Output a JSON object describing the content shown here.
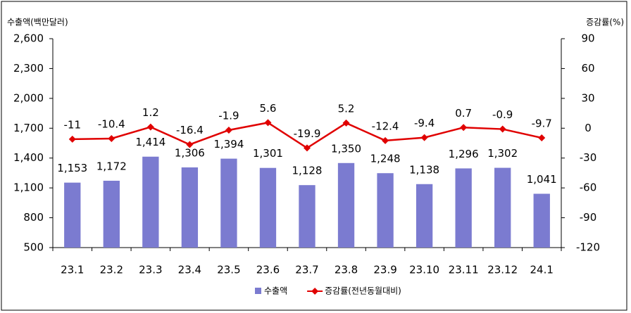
{
  "chart_data": {
    "type": "combo",
    "y_label": "수출액(백만달러)",
    "y2_label": "증감률(%)",
    "categories": [
      "23.1",
      "23.2",
      "23.3",
      "23.4",
      "23.5",
      "23.6",
      "23.7",
      "23.8",
      "23.9",
      "23.10",
      "23.11",
      "23.12",
      "24.1"
    ],
    "series": [
      {
        "name": "수출액",
        "type": "bar",
        "color": "#7b7bd0",
        "values": [
          1153,
          1172,
          1414,
          1306,
          1394,
          1301,
          1128,
          1350,
          1248,
          1138,
          1296,
          1302,
          1041
        ],
        "value_labels": [
          "1,153",
          "1,172",
          "1,414",
          "1,306",
          "1,394",
          "1,301",
          "1,128",
          "1,350",
          "1,248",
          "1,138",
          "1,296",
          "1,302",
          "1,041"
        ]
      },
      {
        "name": "증감률(전년동월대비)",
        "type": "line",
        "axis": "y2",
        "color": "#e00000",
        "values": [
          -11,
          -10.4,
          1.2,
          -16.4,
          -1.9,
          5.6,
          -19.9,
          5.2,
          -12.4,
          -9.4,
          0.7,
          -0.9,
          -9.7
        ]
      }
    ],
    "ylim": [
      500,
      2600
    ],
    "yticks": [
      500,
      800,
      {
        "value": 1100,
        "label": "1,100"
      },
      {
        "value": 1400,
        "label": "1,400"
      },
      {
        "value": 1700,
        "label": "1,700"
      },
      {
        "value": 2000,
        "label": "2,000"
      },
      {
        "value": 2300,
        "label": "2,300"
      },
      {
        "value": 2600,
        "label": "2,600"
      }
    ],
    "y2lim": [
      -120,
      90
    ],
    "y2ticks": [
      -120,
      -90,
      -60,
      -30,
      0,
      30,
      60,
      90
    ],
    "legend": "bottom"
  }
}
